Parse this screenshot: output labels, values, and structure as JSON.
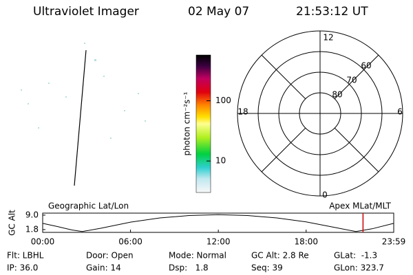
{
  "header": {
    "title": "Ultraviolet Imager",
    "date": "02 May 07",
    "time": "21:53:12 UT"
  },
  "colorbar": {
    "label": "photon cm⁻²s⁻¹",
    "log": true,
    "lim": [
      3,
      575
    ],
    "ticks": [
      10,
      100
    ]
  },
  "polar": {
    "labels": {
      "top": "12",
      "right": "6",
      "bottom": "0",
      "left": "18"
    },
    "lat_lim": [
      90,
      50
    ],
    "lat_ticks": [
      60,
      70,
      80
    ]
  },
  "chart_data": {
    "type": "line",
    "title_left": "Geographic Lat/Lon",
    "title_right": "Apex MLat/MLT",
    "ylabel": "GC Alt",
    "x": [
      0,
      1,
      2,
      2.7,
      4,
      6,
      8,
      10,
      12,
      14,
      16,
      18,
      20,
      21.4,
      22.5,
      23.98
    ],
    "values": [
      4.9,
      3.3,
      1.6,
      0.8,
      2.5,
      5.5,
      7.6,
      8.8,
      9.2,
      8.8,
      7.6,
      5.6,
      2.8,
      0.8,
      2.2,
      4.9
    ],
    "color": "#000000",
    "marker_x": 21.885,
    "marker_color": "#cc0000",
    "xlim": [
      0,
      23.983
    ],
    "ylim": [
      0.4,
      10.0
    ],
    "xticks": [
      {
        "value": 0,
        "label": "00:00"
      },
      {
        "value": 6,
        "label": "06:00"
      },
      {
        "value": 12,
        "label": "12:00"
      },
      {
        "value": 18,
        "label": "18:00"
      },
      {
        "value": 23.983,
        "label": "23:59"
      }
    ],
    "yticks": [
      {
        "value": 9.0,
        "label": "9.0"
      },
      {
        "value": 1.8,
        "label": "1.8"
      }
    ]
  },
  "footer": {
    "rows": [
      [
        "Flt: LBHL",
        "Door: Open",
        "Mode: Normal",
        "GC Alt: 2.8 Re",
        "GLat:  -1.3"
      ],
      [
        "IP: 36.0",
        "Gain: 14",
        "Dsp:   1.8",
        "Seq: 39",
        "GLon: 323.7"
      ]
    ]
  }
}
